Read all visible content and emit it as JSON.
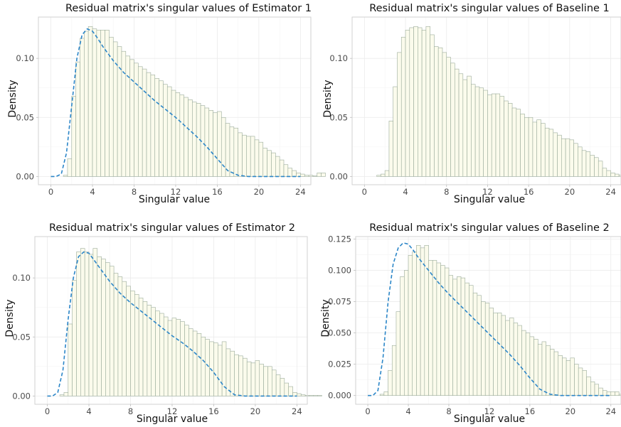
{
  "figure": {
    "style": {
      "bar_fill": "#fbfbec",
      "bar_stroke": "#9aab9a",
      "density_line_color": "#2b86c8",
      "density_line_style": "dashed",
      "grid": true,
      "legend": "none"
    }
  },
  "chart_data": [
    {
      "type": "bar",
      "title": "Residual matrix's singular values of Estimator 1",
      "xlabel": "Singular value",
      "ylabel": "Density",
      "xlim": [
        -1.2,
        25
      ],
      "ylim": [
        -0.007,
        0.135
      ],
      "xticks": [
        0,
        4,
        8,
        12,
        16,
        20,
        24
      ],
      "xtick_labels": [
        "0",
        "4",
        "8",
        "12",
        "16",
        "20",
        "24"
      ],
      "yticks": [
        0,
        0.05,
        0.1
      ],
      "ytick_labels": [
        "0.00",
        "0.05",
        "0.10"
      ],
      "bin_width": 0.4,
      "bins_start": 1.2,
      "values": [
        0.001,
        0.015,
        0.068,
        0.097,
        0.117,
        0.123,
        0.127,
        0.125,
        0.124,
        0.124,
        0.124,
        0.118,
        0.114,
        0.11,
        0.106,
        0.102,
        0.099,
        0.096,
        0.093,
        0.091,
        0.088,
        0.086,
        0.083,
        0.081,
        0.078,
        0.076,
        0.073,
        0.071,
        0.069,
        0.067,
        0.065,
        0.063,
        0.062,
        0.06,
        0.058,
        0.056,
        0.054,
        0.055,
        0.05,
        0.045,
        0.042,
        0.041,
        0.037,
        0.035,
        0.034,
        0.034,
        0.031,
        0.029,
        0.024,
        0.022,
        0.02,
        0.017,
        0.014,
        0.01,
        0.007,
        0.005,
        0.003,
        0.002,
        0.001,
        0.001,
        0.0005,
        0.003,
        0.003
      ],
      "density_line": {
        "x": [
          0,
          0.5,
          1,
          1.5,
          2,
          2.5,
          3,
          3.5,
          4,
          4.5,
          5,
          6,
          7,
          8,
          9,
          10,
          11,
          12,
          13,
          14,
          15,
          16,
          17,
          18,
          19,
          20,
          21,
          22,
          23,
          24
        ],
        "y": [
          0,
          0,
          0.002,
          0.02,
          0.06,
          0.1,
          0.12,
          0.125,
          0.123,
          0.117,
          0.11,
          0.098,
          0.088,
          0.08,
          0.072,
          0.064,
          0.057,
          0.05,
          0.042,
          0.034,
          0.025,
          0.015,
          0.005,
          0.001,
          0,
          0,
          0,
          0,
          0,
          0
        ]
      }
    },
    {
      "type": "bar",
      "title": "Residual matrix's singular values of Baseline 1",
      "xlabel": "Singular value",
      "ylabel": "Density",
      "xlim": [
        -1.2,
        25
      ],
      "ylim": [
        -0.007,
        0.135
      ],
      "xticks": [
        0,
        4,
        8,
        12,
        16,
        20,
        24
      ],
      "xtick_labels": [
        "0",
        "4",
        "8",
        "12",
        "16",
        "20",
        "24"
      ],
      "yticks": [
        0,
        0.05,
        0.1
      ],
      "ytick_labels": [
        "0.00",
        "0.05",
        "0.10"
      ],
      "bin_width": 0.4,
      "bins_start": 1.2,
      "values": [
        0.001,
        0.002,
        0.005,
        0.047,
        0.076,
        0.105,
        0.118,
        0.124,
        0.126,
        0.127,
        0.126,
        0.124,
        0.127,
        0.12,
        0.11,
        0.109,
        0.105,
        0.101,
        0.096,
        0.091,
        0.087,
        0.082,
        0.085,
        0.078,
        0.076,
        0.075,
        0.073,
        0.069,
        0.07,
        0.07,
        0.068,
        0.064,
        0.062,
        0.058,
        0.057,
        0.053,
        0.05,
        0.05,
        0.046,
        0.048,
        0.045,
        0.041,
        0.04,
        0.037,
        0.035,
        0.032,
        0.032,
        0.031,
        0.028,
        0.025,
        0.022,
        0.021,
        0.018,
        0.016,
        0.013,
        0.007,
        0.005,
        0.003,
        0.002,
        0.001,
        0.002,
        0.001,
        0.0005
      ]
    },
    {
      "type": "bar",
      "title": "Residual matrix's singular values of Estimator 2",
      "xlabel": "Singular value",
      "ylabel": "Density",
      "xlim": [
        -1.2,
        25
      ],
      "ylim": [
        -0.007,
        0.135
      ],
      "xticks": [
        0,
        4,
        8,
        12,
        16,
        20,
        24
      ],
      "xtick_labels": [
        "0",
        "4",
        "8",
        "12",
        "16",
        "20",
        "24"
      ],
      "yticks": [
        0,
        0.05,
        0.1
      ],
      "ytick_labels": [
        "0.00",
        "0.05",
        "0.10"
      ],
      "bin_width": 0.4,
      "bins_start": 1.2,
      "values": [
        0.001,
        0.003,
        0.061,
        0.098,
        0.122,
        0.125,
        0.122,
        0.12,
        0.125,
        0.118,
        0.116,
        0.113,
        0.11,
        0.104,
        0.101,
        0.097,
        0.093,
        0.089,
        0.086,
        0.083,
        0.08,
        0.077,
        0.075,
        0.072,
        0.07,
        0.067,
        0.064,
        0.066,
        0.065,
        0.063,
        0.06,
        0.057,
        0.055,
        0.053,
        0.05,
        0.048,
        0.046,
        0.045,
        0.043,
        0.046,
        0.04,
        0.038,
        0.035,
        0.034,
        0.032,
        0.029,
        0.028,
        0.03,
        0.027,
        0.025,
        0.025,
        0.022,
        0.018,
        0.015,
        0.011,
        0.008,
        0.003,
        0.002,
        0.001,
        0.0005,
        0.0005,
        0.0005,
        0.0005
      ],
      "density_line": {
        "x": [
          0,
          0.5,
          1,
          1.5,
          2,
          2.5,
          3,
          3.5,
          4,
          4.5,
          5,
          6,
          7,
          8,
          9,
          10,
          11,
          12,
          13,
          14,
          15,
          16,
          17,
          18,
          19,
          20,
          21,
          22,
          23,
          24
        ],
        "y": [
          0,
          0,
          0.003,
          0.022,
          0.065,
          0.1,
          0.118,
          0.122,
          0.121,
          0.115,
          0.109,
          0.097,
          0.087,
          0.079,
          0.072,
          0.065,
          0.058,
          0.051,
          0.045,
          0.038,
          0.03,
          0.02,
          0.008,
          0.001,
          0,
          0,
          0,
          0,
          0,
          0
        ]
      }
    },
    {
      "type": "bar",
      "title": "Residual matrix's singular values of Baseline 2",
      "xlabel": "Singular value",
      "ylabel": "Density",
      "xlim": [
        -1.2,
        25
      ],
      "ylim": [
        -0.007,
        0.127
      ],
      "xticks": [
        0,
        4,
        8,
        12,
        16,
        20,
        24
      ],
      "xtick_labels": [
        "0",
        "4",
        "8",
        "12",
        "16",
        "20",
        "24"
      ],
      "yticks": [
        0,
        0.025,
        0.05,
        0.075,
        0.1,
        0.125
      ],
      "ytick_labels": [
        "0.000",
        "0.025",
        "0.050",
        "0.075",
        "0.100",
        "0.125"
      ],
      "bin_width": 0.4,
      "bins_start": 1.2,
      "values": [
        0.001,
        0.003,
        0.02,
        0.04,
        0.067,
        0.095,
        0.1,
        0.112,
        0.115,
        0.12,
        0.118,
        0.12,
        0.108,
        0.108,
        0.106,
        0.104,
        0.102,
        0.096,
        0.093,
        0.095,
        0.094,
        0.09,
        0.088,
        0.082,
        0.08,
        0.075,
        0.074,
        0.07,
        0.066,
        0.066,
        0.064,
        0.06,
        0.062,
        0.058,
        0.056,
        0.052,
        0.05,
        0.047,
        0.045,
        0.041,
        0.043,
        0.04,
        0.037,
        0.035,
        0.032,
        0.03,
        0.028,
        0.03,
        0.025,
        0.022,
        0.02,
        0.015,
        0.011,
        0.009,
        0.006,
        0.004,
        0.003,
        0.003,
        0.003,
        0.001,
        0.0005,
        0.0005,
        0.0005
      ],
      "density_line": {
        "x": [
          0,
          0.5,
          1,
          1.5,
          2,
          2.5,
          3,
          3.5,
          4,
          4.5,
          5,
          6,
          7,
          8,
          9,
          10,
          11,
          12,
          13,
          14,
          15,
          16,
          17,
          18,
          19,
          20,
          21,
          22,
          23,
          24
        ],
        "y": [
          0,
          0,
          0.004,
          0.03,
          0.075,
          0.105,
          0.118,
          0.122,
          0.121,
          0.116,
          0.11,
          0.1,
          0.09,
          0.081,
          0.073,
          0.065,
          0.057,
          0.049,
          0.041,
          0.033,
          0.024,
          0.014,
          0.005,
          0.001,
          0,
          0,
          0,
          0,
          0,
          0
        ]
      }
    }
  ]
}
